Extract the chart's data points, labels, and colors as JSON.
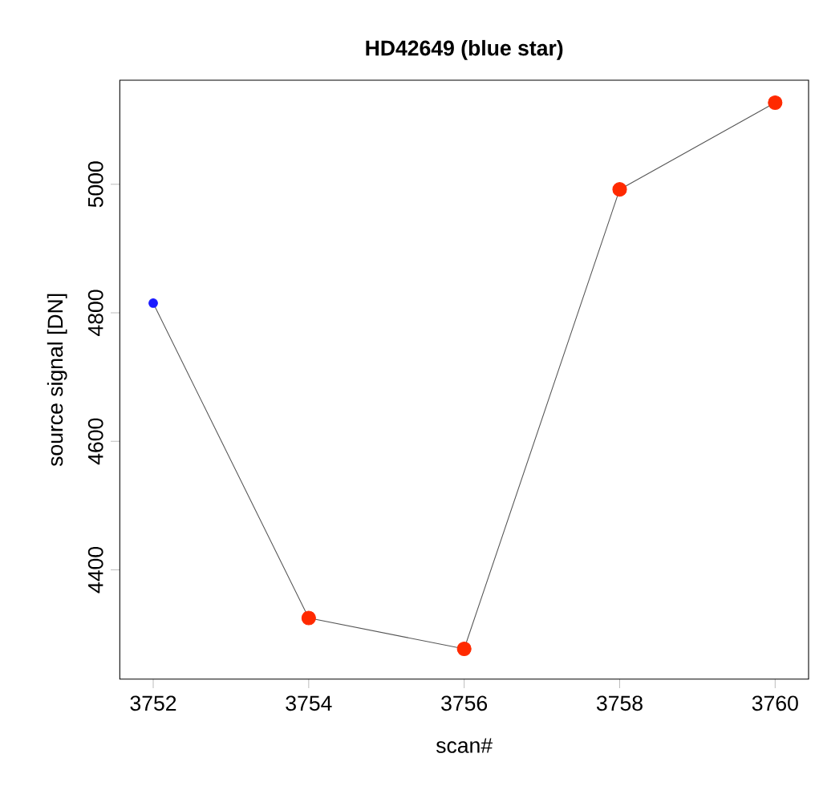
{
  "chart_data": {
    "type": "line",
    "title": "HD42649 (blue star)",
    "xlabel": "scan#",
    "ylabel": "source signal [DN]",
    "x": [
      3752,
      3754,
      3756,
      3758,
      3760
    ],
    "series": [
      {
        "color": "#555555",
        "colors": [
          "#1a1aff",
          "#ff2a00",
          "#ff2a00",
          "#ff2a00",
          "#ff2a00"
        ],
        "values": [
          4815,
          4325,
          4277,
          4992,
          5127
        ]
      }
    ],
    "xlim": [
      3751.57,
      3760.43
    ],
    "ylim": [
      4230,
      5162
    ],
    "xticks": [
      3752,
      3754,
      3756,
      3758,
      3760
    ],
    "yticks": [
      4400,
      4600,
      4800,
      5000
    ],
    "marker": "circle",
    "line_style": "solid",
    "grid": false
  }
}
